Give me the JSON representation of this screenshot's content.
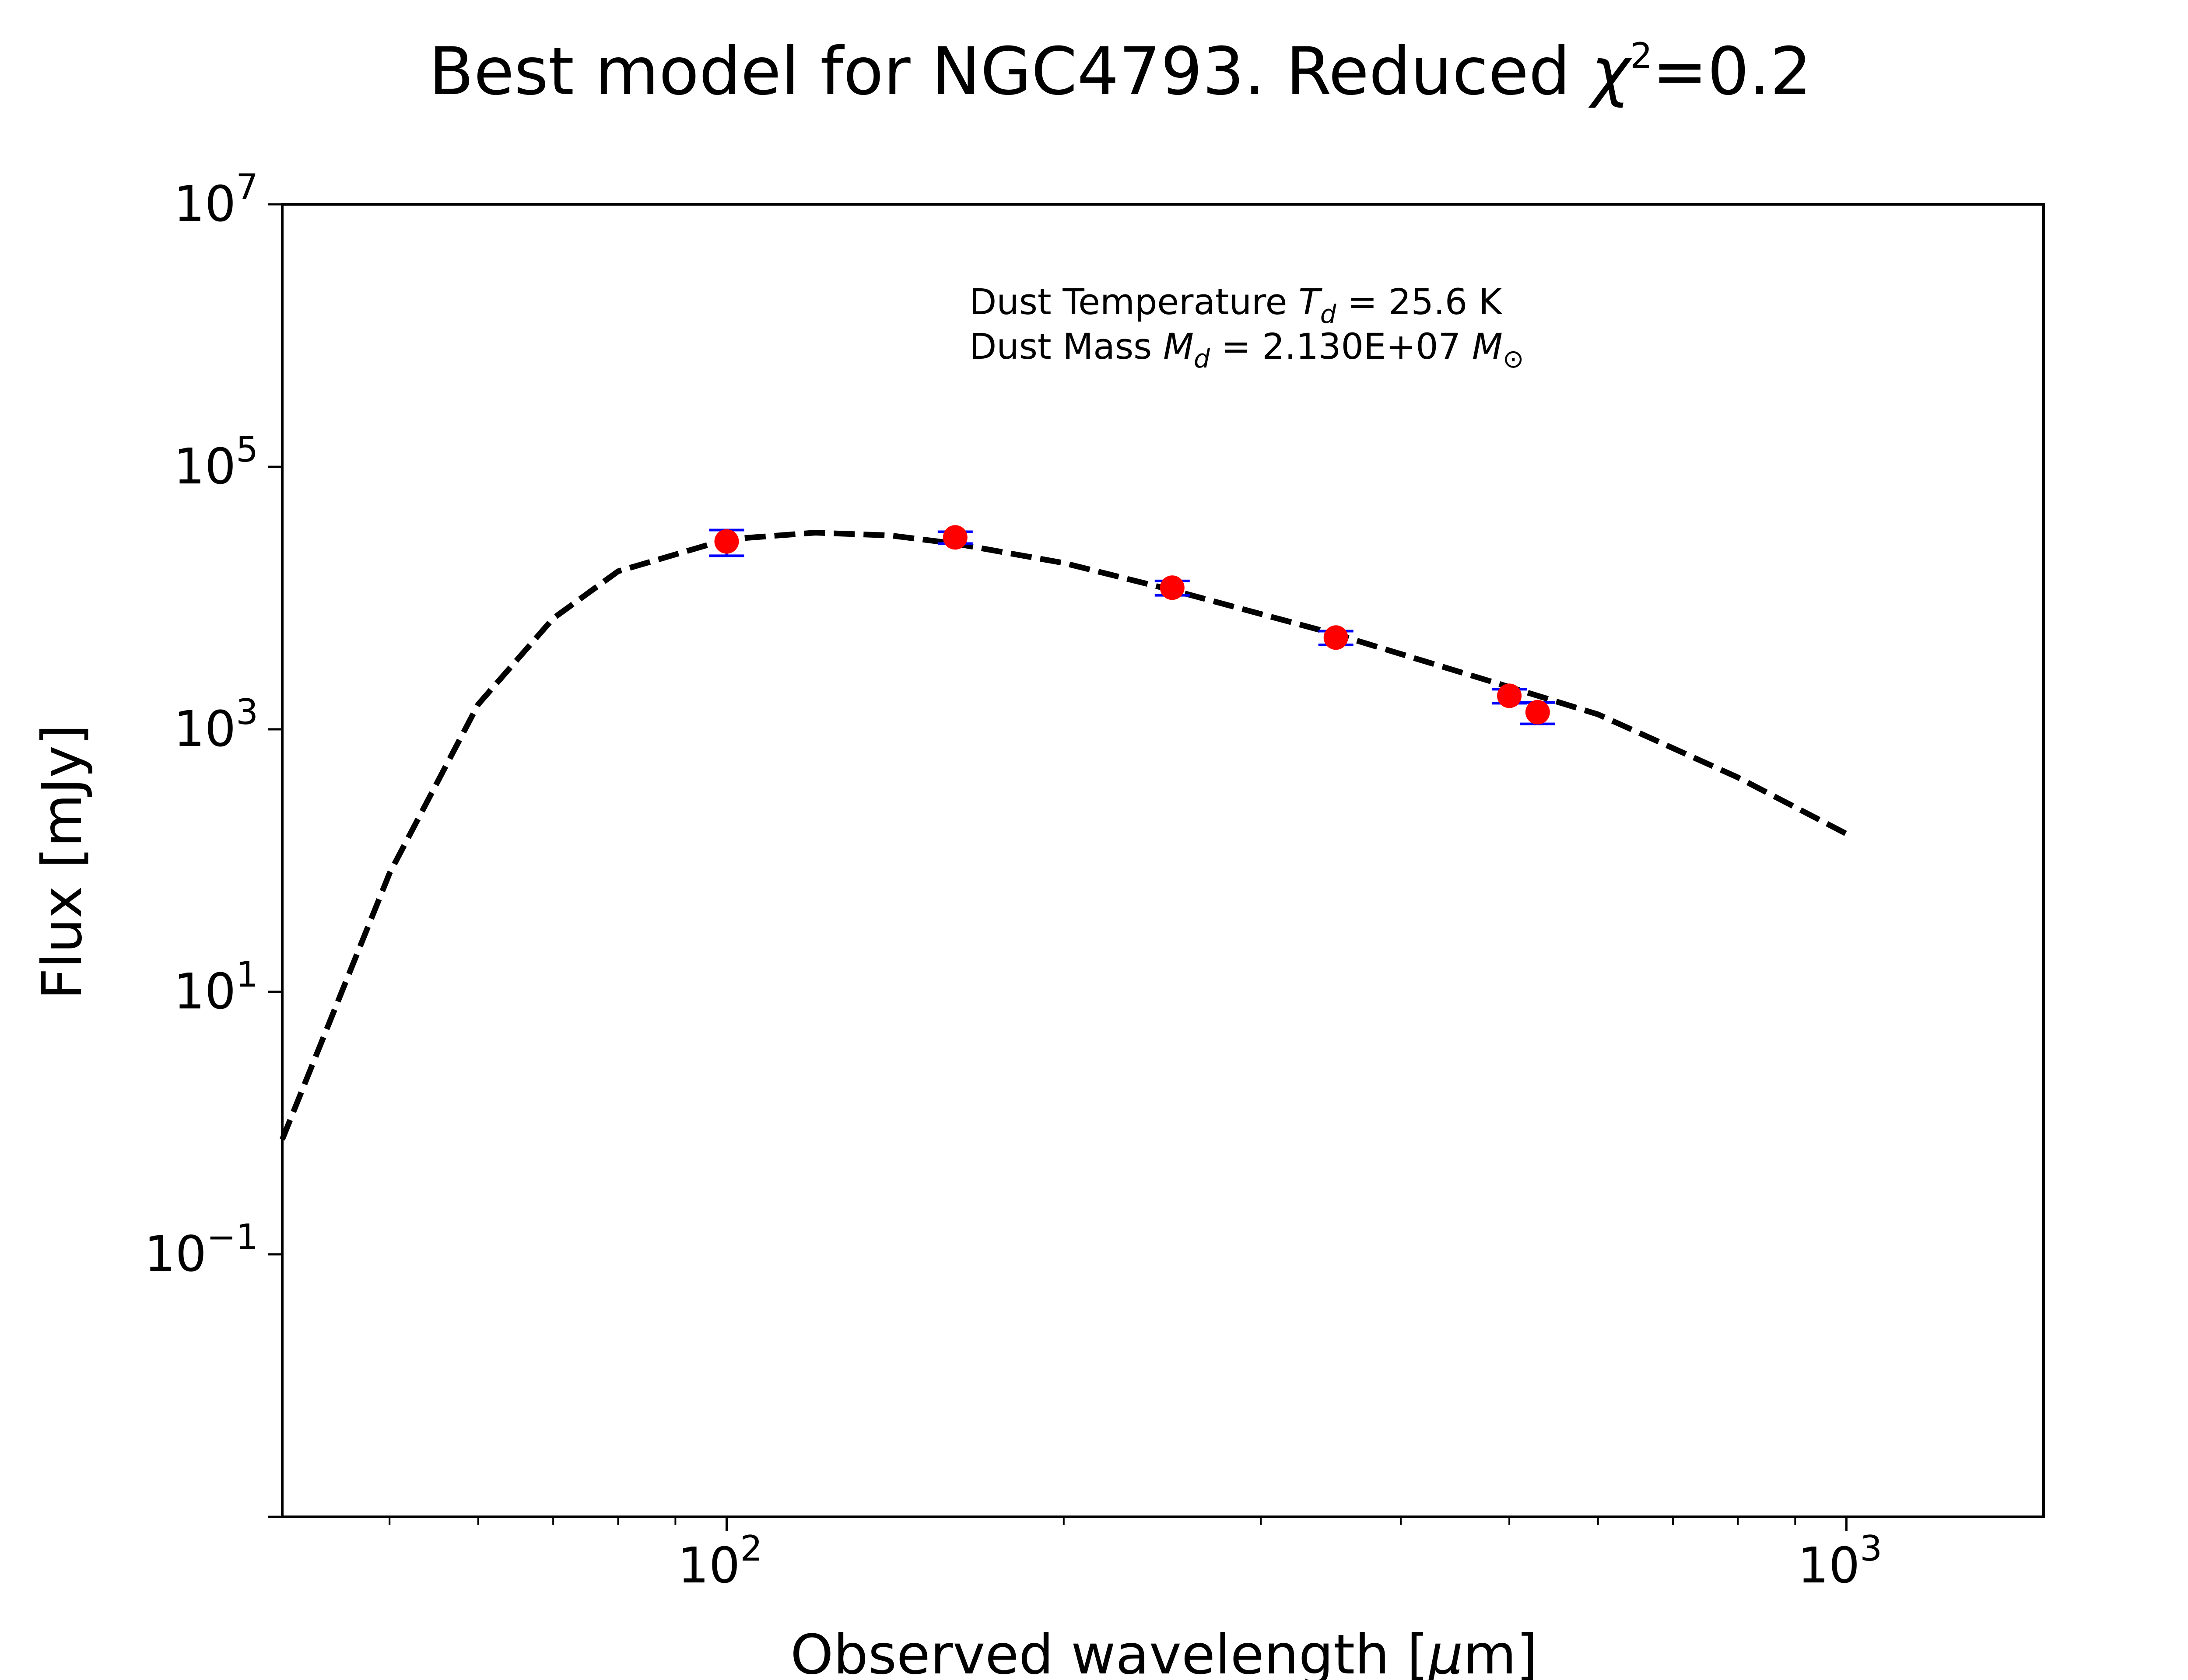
{
  "chart_data": {
    "type": "scatter",
    "title_prefix": "Best model for NGC4793. Reduced ",
    "title_symbol": "χ",
    "title_exponent": "2",
    "title_suffix": "=0.2",
    "xlabel_prefix": "Observed wavelength [",
    "xlabel_unit_symbol": "μ",
    "xlabel_suffix": "m]",
    "ylabel": "Flux [mJy]",
    "x_scale": "log",
    "y_scale": "log",
    "xlim": [
      40.1,
      1500
    ],
    "ylim": [
      0.001,
      10000000
    ],
    "x_ticks": [
      {
        "base": "10",
        "exp": "2",
        "value": 100
      },
      {
        "base": "10",
        "exp": "3",
        "value": 1000
      }
    ],
    "x_minor_ticks": [
      50,
      60,
      70,
      80,
      90,
      200,
      300,
      400,
      500,
      600,
      700,
      800,
      900
    ],
    "y_ticks": [
      {
        "base": "10",
        "exp": "7",
        "value": 10000000
      },
      {
        "base": "10",
        "exp": "5",
        "value": 100000
      },
      {
        "base": "10",
        "exp": "3",
        "value": 1000
      },
      {
        "base": "10",
        "exp": "1",
        "value": 10
      },
      {
        "base": "10",
        "exp": "−1",
        "value": 0.1
      }
    ],
    "annotation": {
      "line1_prefix": "Dust Temperature ",
      "line1_symbol": "T",
      "line1_sub": "d",
      "line1_suffix": " = 25.6 K",
      "line2_prefix": "Dust Mass ",
      "line2_symbol": "M",
      "line2_sub": "d",
      "line2_middle": " = 2.130E+07 ",
      "line2_unit_symbol": "M",
      "line2_unit_sub": "⊙"
    },
    "grid": false,
    "series": [
      {
        "kind": "model",
        "line_style": "dashed",
        "color": "#000000",
        "x": [
          40.1,
          50,
          60,
          70,
          80,
          100,
          120,
          140,
          160,
          200,
          250,
          350,
          500,
          600,
          800,
          1000
        ],
        "y": [
          0.75,
          80,
          1550,
          7000,
          16000,
          28000,
          31500,
          30000,
          26000,
          18500,
          11500,
          5300,
          2100,
          1300,
          430,
          160
        ]
      },
      {
        "kind": "observations",
        "marker": "circle",
        "marker_color": "#ff0000",
        "errorbar_color": "#0000ff",
        "x": [
          100,
          160,
          250,
          350,
          500,
          530
        ],
        "y": [
          27000,
          29000,
          12000,
          5000,
          1800,
          1350
        ],
        "yerr_low": [
          6000,
          3000,
          1500,
          600,
          220,
          250
        ],
        "yerr_high": [
          6000,
          3000,
          1500,
          600,
          220,
          250
        ]
      }
    ]
  }
}
